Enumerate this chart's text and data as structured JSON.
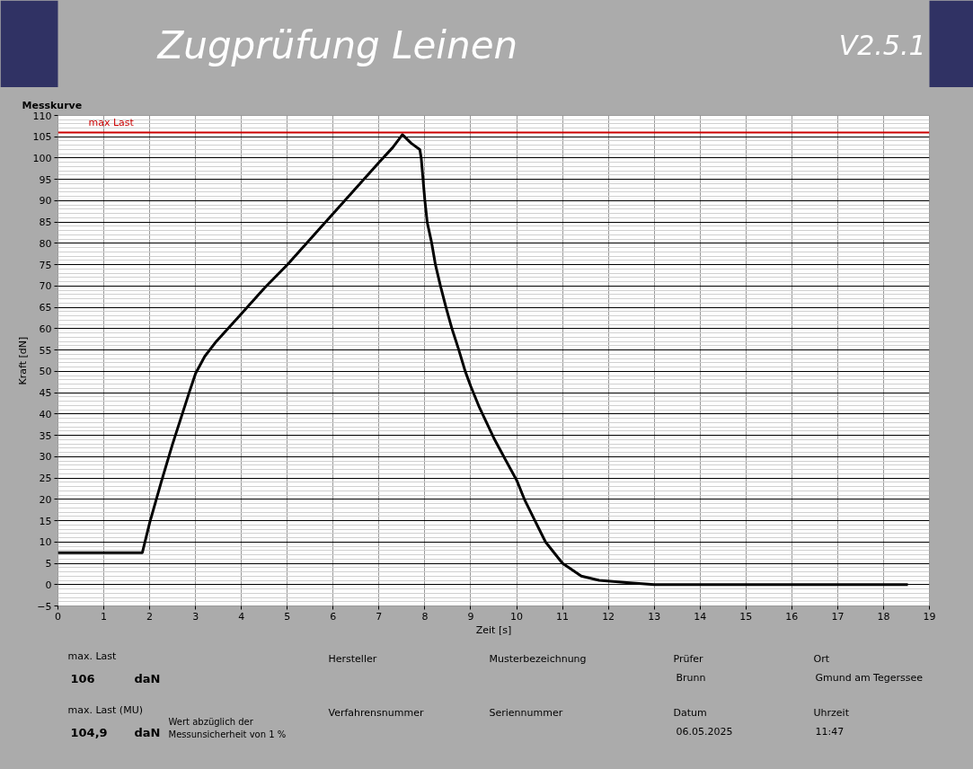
{
  "chart_data": {
    "type": "line",
    "title": "Zugprüfung Leinen",
    "subtitle": "Messkurve",
    "xlabel": "Zeit [s]",
    "ylabel": "Kraft [dN]",
    "x": [
      0,
      0.5,
      1.0,
      1.5,
      1.84,
      2.0,
      2.25,
      2.5,
      2.86,
      3.0,
      3.2,
      3.45,
      4.0,
      4.5,
      5.0,
      5.5,
      6.0,
      6.5,
      7.0,
      7.3,
      7.51,
      7.7,
      7.89,
      7.92,
      8.0,
      8.05,
      8.15,
      8.23,
      8.34,
      8.46,
      8.59,
      8.74,
      8.88,
      9.0,
      9.19,
      9.52,
      9.72,
      10.0,
      10.17,
      10.4,
      10.63,
      11.0,
      11.41,
      11.8,
      12.4,
      13.0,
      14.0,
      15.0,
      16.0,
      17.0,
      18.0,
      18.53
    ],
    "values": [
      7.5,
      7.5,
      7.5,
      7.5,
      7.5,
      14.5,
      24,
      33,
      45,
      49.5,
      53.5,
      57,
      63.5,
      69.5,
      75,
      81,
      87,
      93,
      99,
      102.5,
      105.5,
      103.5,
      102,
      100,
      90,
      85,
      80,
      75,
      70,
      65,
      60,
      55,
      50,
      46.5,
      41.5,
      34,
      30,
      24.5,
      20,
      15,
      10,
      5,
      2,
      1,
      0.5,
      0,
      0,
      0,
      0,
      0,
      0,
      0
    ],
    "color": "#000000",
    "xlim": [
      0,
      19
    ],
    "ylim": [
      -5,
      110
    ],
    "xticks": [
      0,
      1,
      2,
      3,
      4,
      5,
      6,
      7,
      8,
      9,
      10,
      11,
      12,
      13,
      14,
      15,
      16,
      17,
      18,
      19
    ],
    "yticks": [
      -5,
      0,
      5,
      10,
      15,
      20,
      25,
      30,
      35,
      40,
      45,
      50,
      55,
      60,
      65,
      70,
      75,
      80,
      85,
      90,
      95,
      100,
      105,
      110
    ],
    "grid": true,
    "ref_lines": [
      {
        "axis": "y",
        "value": 106,
        "label": "max Last",
        "color": "#cc0000"
      }
    ],
    "annotations": [
      "V2.5.1",
      "max. Last",
      "106",
      "daN",
      "max. Last (MU)",
      "104,9",
      "daN",
      "Wert abzüglich der\nMessunsicherheit von 1 %",
      "Hersteller",
      "Verfahrensnummer",
      "Musterbezeichnung",
      "Seriennummer",
      "Prüfer",
      "Brunn",
      "Datum",
      "06.05.2025",
      "Ort",
      "Gmund am Tegerssee",
      "Uhrzeit",
      "11:47"
    ]
  }
}
